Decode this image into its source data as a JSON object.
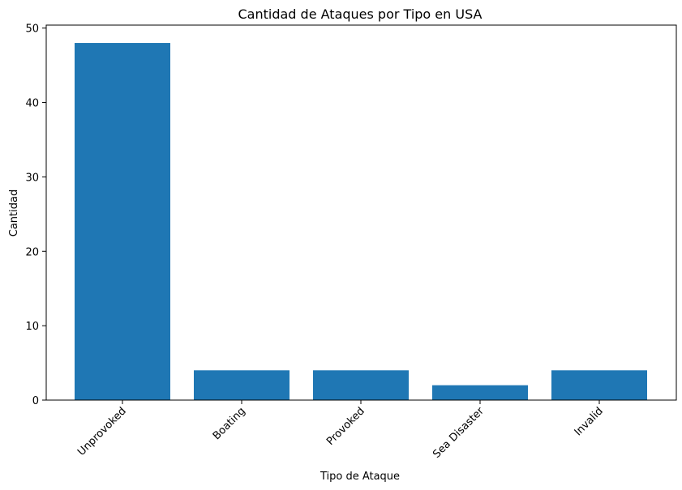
{
  "chart_data": {
    "type": "bar",
    "title": "Cantidad de Ataques por Tipo en USA",
    "xlabel": "Tipo de Ataque",
    "ylabel": "Cantidad",
    "categories": [
      "Unprovoked",
      "Boating",
      "Provoked",
      "Sea Disaster",
      "Invalid"
    ],
    "values": [
      48,
      4,
      4,
      2,
      4
    ],
    "ylim": [
      0,
      50.4
    ],
    "yticks": [
      0,
      10,
      20,
      30,
      40,
      50
    ],
    "bar_color": "#1f77b4",
    "grid": false,
    "x_tick_rotation_deg": 45
  }
}
